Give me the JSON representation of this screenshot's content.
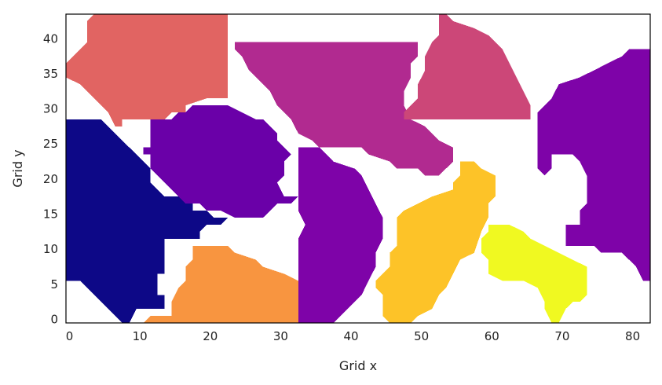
{
  "chart_data": {
    "type": "heatmap",
    "title": "",
    "xlabel": "Grid x",
    "ylabel": "Grid y",
    "xlim": [
      -0.5,
      82.5
    ],
    "ylim": [
      43.5,
      -0.5
    ],
    "grid": false,
    "legend": "none",
    "colormap": "plasma",
    "x_ticks": [
      0,
      10,
      20,
      30,
      40,
      50,
      60,
      70,
      80
    ],
    "y_ticks": [
      0,
      5,
      10,
      15,
      20,
      25,
      30,
      35,
      40
    ],
    "regions": [
      {
        "color": "#0d0887",
        "polygon": [
          [
            9,
            0
          ],
          [
            10,
            2
          ],
          [
            14,
            2
          ],
          [
            14,
            4
          ],
          [
            13,
            4
          ],
          [
            13,
            7
          ],
          [
            14,
            7
          ],
          [
            14,
            12
          ],
          [
            19,
            12
          ],
          [
            19,
            13
          ],
          [
            20,
            14
          ],
          [
            22,
            14
          ],
          [
            23,
            15
          ],
          [
            21,
            15
          ],
          [
            20,
            16
          ],
          [
            18,
            16
          ],
          [
            18,
            17
          ],
          [
            17,
            17
          ],
          [
            16,
            18
          ],
          [
            14,
            18
          ],
          [
            13,
            19
          ],
          [
            12,
            20
          ],
          [
            12,
            22
          ],
          [
            11,
            23
          ],
          [
            10,
            24
          ],
          [
            9,
            25
          ],
          [
            8,
            26
          ],
          [
            7,
            27
          ],
          [
            6,
            28
          ],
          [
            5,
            29
          ],
          [
            0,
            29
          ],
          [
            0,
            6
          ],
          [
            2,
            6
          ],
          [
            4,
            4
          ],
          [
            5,
            3
          ],
          [
            6,
            2
          ],
          [
            7,
            1
          ],
          [
            8,
            0
          ]
        ]
      },
      {
        "color": "#f89540",
        "polygon": [
          [
            11,
            0
          ],
          [
            33,
            0
          ],
          [
            33,
            6
          ],
          [
            31,
            7
          ],
          [
            28,
            8
          ],
          [
            27,
            9
          ],
          [
            24,
            10
          ],
          [
            23,
            11
          ],
          [
            18,
            11
          ],
          [
            18,
            9
          ],
          [
            17,
            8
          ],
          [
            17,
            6
          ],
          [
            16,
            5
          ],
          [
            15,
            3
          ],
          [
            15,
            1
          ],
          [
            12,
            1
          ]
        ]
      },
      {
        "color": "#7e03a8",
        "polygon": [
          [
            33,
            0
          ],
          [
            38,
            0
          ],
          [
            39,
            1
          ],
          [
            40,
            2
          ],
          [
            42,
            4
          ],
          [
            43,
            6
          ],
          [
            44,
            8
          ],
          [
            44,
            10
          ],
          [
            45,
            12
          ],
          [
            45,
            15
          ],
          [
            44,
            17
          ],
          [
            43,
            19
          ],
          [
            42,
            21
          ],
          [
            41,
            22
          ],
          [
            38,
            23
          ],
          [
            37,
            24
          ],
          [
            36,
            25
          ],
          [
            33,
            25
          ],
          [
            33,
            16
          ],
          [
            34,
            14
          ],
          [
            33,
            12
          ]
        ]
      },
      {
        "color": "#fdc328",
        "polygon": [
          [
            46,
            0
          ],
          [
            49,
            0
          ],
          [
            50,
            1
          ],
          [
            52,
            2
          ],
          [
            53,
            4
          ],
          [
            54,
            5
          ],
          [
            55,
            7
          ],
          [
            56,
            9
          ],
          [
            58,
            10
          ],
          [
            59,
            13
          ],
          [
            60,
            15
          ],
          [
            60,
            17
          ],
          [
            61,
            18
          ],
          [
            61,
            21
          ],
          [
            59,
            22
          ],
          [
            58,
            23
          ],
          [
            56,
            23
          ],
          [
            56,
            21
          ],
          [
            55,
            20
          ],
          [
            55,
            19
          ],
          [
            52,
            18
          ],
          [
            50,
            17
          ],
          [
            48,
            16
          ],
          [
            47,
            15
          ],
          [
            47,
            11
          ],
          [
            46,
            10
          ],
          [
            46,
            8
          ],
          [
            45,
            7
          ],
          [
            44,
            6
          ],
          [
            44,
            5
          ],
          [
            45,
            4
          ],
          [
            45,
            1
          ]
        ]
      },
      {
        "color": "#f0f921",
        "polygon": [
          [
            69,
            0
          ],
          [
            70,
            0
          ],
          [
            71,
            2
          ],
          [
            72,
            3
          ],
          [
            73,
            3
          ],
          [
            74,
            4
          ],
          [
            74,
            8
          ],
          [
            72,
            9
          ],
          [
            70,
            10
          ],
          [
            68,
            11
          ],
          [
            66,
            12
          ],
          [
            65,
            13
          ],
          [
            63,
            14
          ],
          [
            60,
            14
          ],
          [
            60,
            13
          ],
          [
            59,
            12
          ],
          [
            59,
            10
          ],
          [
            60,
            9
          ],
          [
            60,
            7
          ],
          [
            62,
            6
          ],
          [
            65,
            6
          ],
          [
            67,
            5
          ],
          [
            68,
            3
          ],
          [
            68,
            2
          ]
        ]
      },
      {
        "color": "#7e03a8",
        "polygon": [
          [
            82,
            6
          ],
          [
            83,
            6
          ],
          [
            83,
            39
          ],
          [
            80,
            39
          ],
          [
            79,
            38
          ],
          [
            77,
            37
          ],
          [
            75,
            36
          ],
          [
            73,
            35
          ],
          [
            70,
            34
          ],
          [
            69,
            32
          ],
          [
            68,
            31
          ],
          [
            67,
            30
          ],
          [
            67,
            22
          ],
          [
            68,
            21
          ],
          [
            69,
            22
          ],
          [
            69,
            24
          ],
          [
            72,
            24
          ],
          [
            73,
            23
          ],
          [
            74,
            21
          ],
          [
            74,
            17
          ],
          [
            73,
            16
          ],
          [
            73,
            14
          ],
          [
            71,
            14
          ],
          [
            71,
            11
          ],
          [
            75,
            11
          ],
          [
            76,
            10
          ],
          [
            79,
            10
          ],
          [
            80,
            9
          ],
          [
            81,
            8
          ]
        ]
      },
      {
        "color": "#6a00a8",
        "polygon": [
          [
            25,
            15
          ],
          [
            28,
            15
          ],
          [
            29,
            16
          ],
          [
            30,
            17
          ],
          [
            32,
            17
          ],
          [
            33,
            18
          ],
          [
            31,
            18
          ],
          [
            30,
            20
          ],
          [
            31,
            21
          ],
          [
            31,
            23
          ],
          [
            32,
            24
          ],
          [
            31,
            25
          ],
          [
            30,
            26
          ],
          [
            30,
            27
          ],
          [
            29,
            28
          ],
          [
            28,
            29
          ],
          [
            27,
            29
          ],
          [
            25,
            30
          ],
          [
            23,
            31
          ],
          [
            18,
            31
          ],
          [
            17,
            30
          ],
          [
            16,
            30
          ],
          [
            15,
            29
          ],
          [
            12,
            29
          ],
          [
            12,
            25
          ],
          [
            11,
            25
          ],
          [
            11,
            24
          ],
          [
            12,
            24
          ],
          [
            12,
            22
          ],
          [
            13,
            21
          ],
          [
            14,
            20
          ],
          [
            15,
            19
          ],
          [
            16,
            18
          ],
          [
            17,
            17
          ],
          [
            19,
            17
          ],
          [
            20,
            16
          ],
          [
            22,
            16
          ],
          [
            24,
            15
          ]
        ]
      },
      {
        "color": "#b12a90",
        "polygon": [
          [
            51,
            21
          ],
          [
            53,
            21
          ],
          [
            54,
            22
          ],
          [
            55,
            23
          ],
          [
            55,
            25
          ],
          [
            53,
            26
          ],
          [
            52,
            27
          ],
          [
            51,
            28
          ],
          [
            49,
            29
          ],
          [
            48,
            31
          ],
          [
            48,
            33
          ],
          [
            49,
            35
          ],
          [
            49,
            37
          ],
          [
            50,
            38
          ],
          [
            50,
            40
          ],
          [
            24,
            40
          ],
          [
            24,
            39
          ],
          [
            25,
            38
          ],
          [
            26,
            36
          ],
          [
            27,
            35
          ],
          [
            28,
            34
          ],
          [
            29,
            33
          ],
          [
            30,
            31
          ],
          [
            31,
            30
          ],
          [
            32,
            29
          ],
          [
            33,
            27
          ],
          [
            35,
            26
          ],
          [
            36,
            25
          ],
          [
            42,
            25
          ],
          [
            43,
            24
          ],
          [
            46,
            23
          ],
          [
            47,
            22
          ],
          [
            50,
            22
          ]
        ]
      },
      {
        "color": "#cc4778",
        "polygon": [
          [
            48,
            29
          ],
          [
            66,
            29
          ],
          [
            66,
            31
          ],
          [
            65,
            33
          ],
          [
            64,
            35
          ],
          [
            63,
            37
          ],
          [
            62,
            39
          ],
          [
            61,
            40
          ],
          [
            60,
            41
          ],
          [
            58,
            42
          ],
          [
            55,
            43
          ],
          [
            54,
            44
          ],
          [
            53,
            44
          ],
          [
            53,
            41
          ],
          [
            52,
            40
          ],
          [
            51,
            38
          ],
          [
            51,
            36
          ],
          [
            50,
            34
          ],
          [
            50,
            32
          ],
          [
            49,
            31
          ],
          [
            48,
            30
          ]
        ]
      },
      {
        "color": "#e16462",
        "polygon": [
          [
            7,
            28
          ],
          [
            8,
            28
          ],
          [
            8,
            29
          ],
          [
            14,
            29
          ],
          [
            15,
            30
          ],
          [
            17,
            30
          ],
          [
            17,
            31
          ],
          [
            20,
            32
          ],
          [
            23,
            32
          ],
          [
            23,
            44
          ],
          [
            4,
            44
          ],
          [
            3,
            43
          ],
          [
            3,
            40
          ],
          [
            2,
            39
          ],
          [
            1,
            38
          ],
          [
            0,
            37
          ],
          [
            0,
            35
          ],
          [
            2,
            34
          ],
          [
            3,
            33
          ],
          [
            4,
            32
          ],
          [
            5,
            31
          ],
          [
            6,
            30
          ]
        ]
      }
    ]
  }
}
